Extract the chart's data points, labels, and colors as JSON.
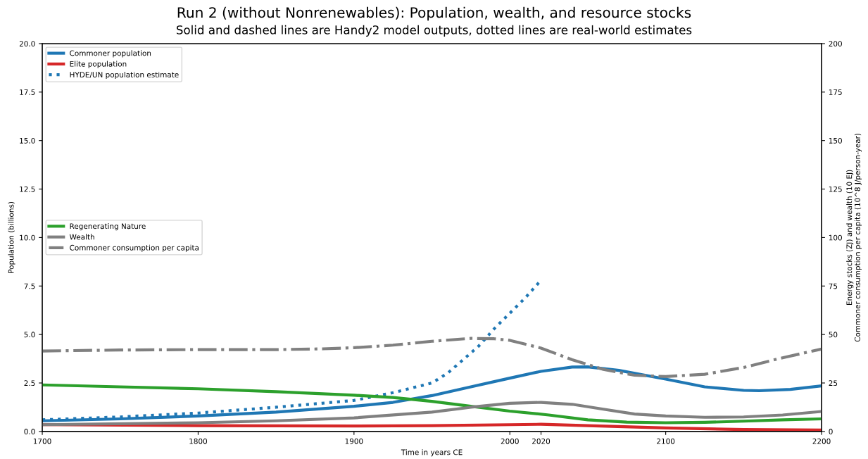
{
  "chart_data": {
    "type": "line",
    "title": "Run 2 (without Nonrenewables): Population, wealth, and resource stocks",
    "subtitle": "Solid and dashed lines are Handy2 model outputs, dotted lines are real-world estimates",
    "xlabel": "Time in years CE",
    "ylabel": "Population (billions)",
    "y2label": "Energy stocks (ZJ) and wealth (10 EJ)\nCommoner consumption per capita (10^8 J/person-year)",
    "xlim": [
      1700,
      2200
    ],
    "xticks": [
      1700,
      1800,
      1900,
      2000,
      2020,
      2100,
      2200
    ],
    "ylim": [
      0,
      20
    ],
    "yticks": [
      {
        "value": 0,
        "label": "0.0"
      },
      {
        "value": 2.5,
        "label": "2.5"
      },
      {
        "value": 5,
        "label": "5.0"
      },
      {
        "value": 7.5,
        "label": "7.5"
      },
      {
        "value": 10,
        "label": "10.0"
      },
      {
        "value": 12.5,
        "label": "12.5"
      },
      {
        "value": 15,
        "label": "15.0"
      },
      {
        "value": 17.5,
        "label": "17.5"
      },
      {
        "value": 20,
        "label": "20.0"
      }
    ],
    "y2lim": [
      0,
      200
    ],
    "y2ticks": [
      0,
      25,
      50,
      75,
      100,
      125,
      150,
      175,
      200
    ],
    "grid": false,
    "legend": [
      "top left",
      "center left"
    ],
    "series": [
      {
        "name": "Commoner population",
        "color": "#1f77b4",
        "line_style": "solid",
        "x": [
          1700,
          1750,
          1800,
          1850,
          1900,
          1925,
          1950,
          1975,
          2000,
          2020,
          2040,
          2050,
          2070,
          2100,
          2125,
          2150,
          2160,
          2180,
          2200
        ],
        "values": [
          0.55,
          0.65,
          0.8,
          1.0,
          1.3,
          1.5,
          1.85,
          2.3,
          2.75,
          3.1,
          3.32,
          3.33,
          3.15,
          2.7,
          2.3,
          2.12,
          2.1,
          2.17,
          2.35
        ]
      },
      {
        "name": "Elite population",
        "color": "#d62728",
        "line_style": "solid",
        "x": [
          1700,
          1800,
          1900,
          1950,
          2000,
          2020,
          2050,
          2100,
          2150,
          2200
        ],
        "values": [
          0.35,
          0.3,
          0.28,
          0.3,
          0.35,
          0.37,
          0.3,
          0.18,
          0.1,
          0.07
        ]
      },
      {
        "name": "HYDE/UN population estimate",
        "color": "#1f77b4",
        "line_style": "dotted",
        "x": [
          1700,
          1750,
          1800,
          1850,
          1900,
          1925,
          1950,
          1960,
          1970,
          1980,
          1990,
          2000,
          2010,
          2020
        ],
        "values": [
          0.6,
          0.75,
          0.95,
          1.25,
          1.6,
          2.0,
          2.5,
          3.0,
          3.7,
          4.4,
          5.3,
          6.1,
          6.9,
          7.8
        ]
      },
      {
        "name": "Regenerating Nature",
        "color": "#2ca02c",
        "line_style": "solid",
        "axis": "y2",
        "x": [
          1700,
          1750,
          1800,
          1850,
          1900,
          1925,
          1950,
          1975,
          2000,
          2025,
          2050,
          2075,
          2100,
          2125,
          2150,
          2175,
          2200
        ],
        "values": [
          24,
          23,
          22,
          20.5,
          18.7,
          17.5,
          15.5,
          13,
          10.5,
          8.5,
          6,
          4.8,
          4.5,
          4.7,
          5.3,
          6,
          6.5
        ]
      },
      {
        "name": "Wealth",
        "color": "#808080",
        "line_style": "solid",
        "axis": "y2",
        "x": [
          1700,
          1800,
          1850,
          1900,
          1950,
          1975,
          2000,
          2020,
          2040,
          2060,
          2080,
          2100,
          2125,
          2150,
          2175,
          2200
        ],
        "values": [
          3.5,
          4.5,
          5.5,
          7,
          10,
          12.5,
          14.5,
          15,
          14,
          11.5,
          9,
          8,
          7.3,
          7.5,
          8.5,
          10.3
        ]
      },
      {
        "name": "Commoner consumption per capita",
        "color": "#808080",
        "line_style": "dashdot",
        "axis": "y2",
        "x": [
          1700,
          1750,
          1800,
          1850,
          1880,
          1900,
          1925,
          1950,
          1975,
          1990,
          2000,
          2020,
          2040,
          2060,
          2080,
          2100,
          2125,
          2150,
          2175,
          2200
        ],
        "values": [
          41.5,
          42,
          42.2,
          42.2,
          42.6,
          43.2,
          44.5,
          46.5,
          48,
          47.8,
          47,
          43,
          37,
          32,
          29,
          28.3,
          29.5,
          33,
          38,
          42.5
        ]
      }
    ]
  }
}
